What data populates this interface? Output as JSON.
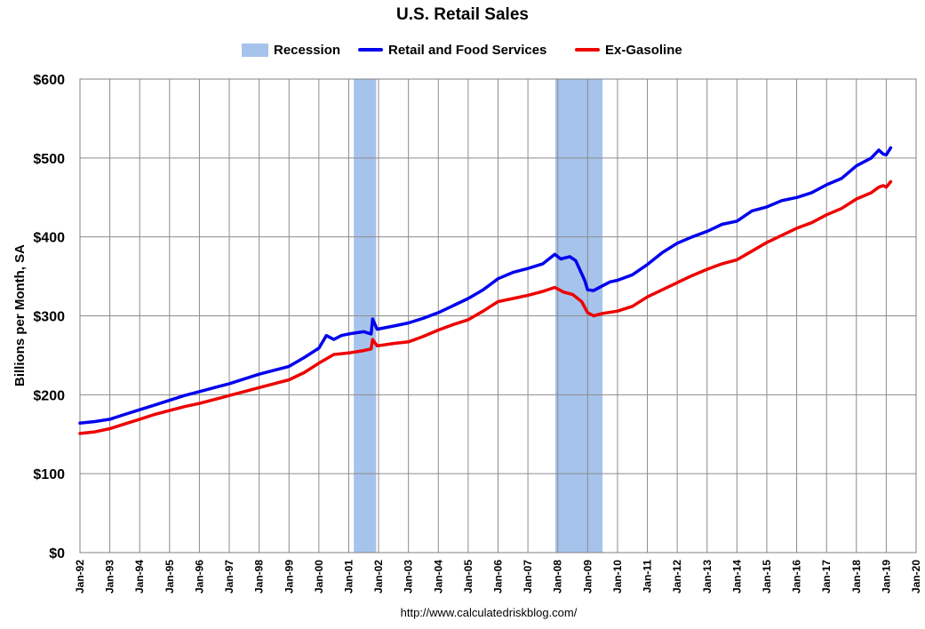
{
  "chart_data": {
    "type": "line",
    "title": "U.S. Retail Sales",
    "ylabel": "Billions per Month, SA",
    "xlabel": "",
    "source": "http://www.calculatedriskblog.com/",
    "ylim": [
      0,
      600
    ],
    "y_ticks": [
      0,
      100,
      200,
      300,
      400,
      500,
      600
    ],
    "y_tick_labels": [
      "$0",
      "$100",
      "$200",
      "$300",
      "$400",
      "$500",
      "$600"
    ],
    "xlim": [
      1992.0,
      2020.0
    ],
    "x_ticks": [
      1992,
      1993,
      1994,
      1995,
      1996,
      1997,
      1998,
      1999,
      2000,
      2001,
      2002,
      2003,
      2004,
      2005,
      2006,
      2007,
      2008,
      2009,
      2010,
      2011,
      2012,
      2013,
      2014,
      2015,
      2016,
      2017,
      2018,
      2019,
      2020
    ],
    "x_tick_labels": [
      "Jan-92",
      "Jan-93",
      "Jan-94",
      "Jan-95",
      "Jan-96",
      "Jan-97",
      "Jan-98",
      "Jan-99",
      "Jan-00",
      "Jan-01",
      "Jan-02",
      "Jan-03",
      "Jan-04",
      "Jan-05",
      "Jan-06",
      "Jan-07",
      "Jan-08",
      "Jan-09",
      "Jan-10",
      "Jan-11",
      "Jan-12",
      "Jan-13",
      "Jan-14",
      "Jan-15",
      "Jan-16",
      "Jan-17",
      "Jan-18",
      "Jan-19",
      "Jan-20"
    ],
    "grid": true,
    "legend_position": "top-center",
    "recessions": [
      {
        "name": "Recession",
        "start": 2001.17,
        "end": 2001.92,
        "color": "#A6C3EC"
      },
      {
        "name": "Recession",
        "start": 2007.92,
        "end": 2009.5,
        "color": "#A6C3EC"
      }
    ],
    "series": [
      {
        "name": "Retail and Food Services",
        "color": "#0000EE",
        "points": [
          [
            1992.0,
            164
          ],
          [
            1992.5,
            166
          ],
          [
            1993.0,
            169
          ],
          [
            1993.5,
            175
          ],
          [
            1994.0,
            181
          ],
          [
            1994.5,
            187
          ],
          [
            1995.0,
            193
          ],
          [
            1995.5,
            199
          ],
          [
            1996.0,
            204
          ],
          [
            1996.5,
            209
          ],
          [
            1997.0,
            214
          ],
          [
            1997.5,
            220
          ],
          [
            1998.0,
            226
          ],
          [
            1998.5,
            231
          ],
          [
            1999.0,
            236
          ],
          [
            1999.5,
            247
          ],
          [
            2000.0,
            259
          ],
          [
            2000.25,
            275
          ],
          [
            2000.5,
            270
          ],
          [
            2000.75,
            275
          ],
          [
            2001.0,
            277
          ],
          [
            2001.5,
            280
          ],
          [
            2001.75,
            277
          ],
          [
            2001.8,
            296
          ],
          [
            2001.95,
            283
          ],
          [
            2002.5,
            287
          ],
          [
            2003.0,
            291
          ],
          [
            2003.5,
            297
          ],
          [
            2004.0,
            304
          ],
          [
            2004.5,
            313
          ],
          [
            2005.0,
            322
          ],
          [
            2005.5,
            333
          ],
          [
            2005.75,
            340
          ],
          [
            2006.0,
            347
          ],
          [
            2006.5,
            355
          ],
          [
            2007.0,
            360
          ],
          [
            2007.5,
            366
          ],
          [
            2007.9,
            378
          ],
          [
            2008.1,
            372
          ],
          [
            2008.4,
            375
          ],
          [
            2008.6,
            370
          ],
          [
            2008.9,
            345
          ],
          [
            2009.0,
            333
          ],
          [
            2009.2,
            332
          ],
          [
            2009.5,
            338
          ],
          [
            2009.75,
            343
          ],
          [
            2010.0,
            345
          ],
          [
            2010.5,
            352
          ],
          [
            2011.0,
            365
          ],
          [
            2011.5,
            380
          ],
          [
            2012.0,
            392
          ],
          [
            2012.5,
            400
          ],
          [
            2013.0,
            407
          ],
          [
            2013.5,
            416
          ],
          [
            2014.0,
            420
          ],
          [
            2014.5,
            433
          ],
          [
            2015.0,
            438
          ],
          [
            2015.5,
            446
          ],
          [
            2016.0,
            450
          ],
          [
            2016.5,
            456
          ],
          [
            2017.0,
            466
          ],
          [
            2017.5,
            474
          ],
          [
            2018.0,
            490
          ],
          [
            2018.5,
            500
          ],
          [
            2018.75,
            510
          ],
          [
            2018.9,
            505
          ],
          [
            2019.0,
            504
          ],
          [
            2019.15,
            513
          ]
        ]
      },
      {
        "name": "Ex-Gasoline",
        "color": "#EE0000",
        "points": [
          [
            1992.0,
            151
          ],
          [
            1992.5,
            153
          ],
          [
            1993.0,
            157
          ],
          [
            1993.5,
            163
          ],
          [
            1994.0,
            169
          ],
          [
            1994.5,
            175
          ],
          [
            1995.0,
            180
          ],
          [
            1995.5,
            185
          ],
          [
            1996.0,
            189
          ],
          [
            1996.5,
            194
          ],
          [
            1997.0,
            199
          ],
          [
            1997.5,
            204
          ],
          [
            1998.0,
            209
          ],
          [
            1998.5,
            214
          ],
          [
            1999.0,
            219
          ],
          [
            1999.5,
            228
          ],
          [
            2000.0,
            240
          ],
          [
            2000.5,
            251
          ],
          [
            2001.0,
            253
          ],
          [
            2001.5,
            256
          ],
          [
            2001.75,
            258
          ],
          [
            2001.8,
            270
          ],
          [
            2001.95,
            262
          ],
          [
            2002.5,
            265
          ],
          [
            2003.0,
            267
          ],
          [
            2003.5,
            274
          ],
          [
            2004.0,
            282
          ],
          [
            2004.5,
            289
          ],
          [
            2005.0,
            295
          ],
          [
            2005.5,
            306
          ],
          [
            2005.75,
            312
          ],
          [
            2006.0,
            318
          ],
          [
            2006.5,
            322
          ],
          [
            2007.0,
            326
          ],
          [
            2007.5,
            331
          ],
          [
            2007.9,
            336
          ],
          [
            2008.2,
            330
          ],
          [
            2008.5,
            327
          ],
          [
            2008.8,
            318
          ],
          [
            2009.0,
            304
          ],
          [
            2009.2,
            300
          ],
          [
            2009.5,
            303
          ],
          [
            2010.0,
            306
          ],
          [
            2010.5,
            312
          ],
          [
            2011.0,
            324
          ],
          [
            2011.5,
            333
          ],
          [
            2012.0,
            342
          ],
          [
            2012.5,
            351
          ],
          [
            2013.0,
            359
          ],
          [
            2013.5,
            366
          ],
          [
            2014.0,
            371
          ],
          [
            2014.5,
            382
          ],
          [
            2015.0,
            393
          ],
          [
            2015.5,
            402
          ],
          [
            2016.0,
            411
          ],
          [
            2016.5,
            418
          ],
          [
            2017.0,
            428
          ],
          [
            2017.5,
            436
          ],
          [
            2018.0,
            448
          ],
          [
            2018.5,
            456
          ],
          [
            2018.75,
            463
          ],
          [
            2018.9,
            465
          ],
          [
            2019.0,
            463
          ],
          [
            2019.15,
            470
          ]
        ]
      }
    ]
  },
  "legend": {
    "recession_label": "Recession",
    "series1_label": "Retail and Food Services",
    "series2_label": "Ex-Gasoline",
    "recession_color": "#A6C3EC",
    "series1_color": "#0000EE",
    "series2_color": "#EE0000"
  }
}
